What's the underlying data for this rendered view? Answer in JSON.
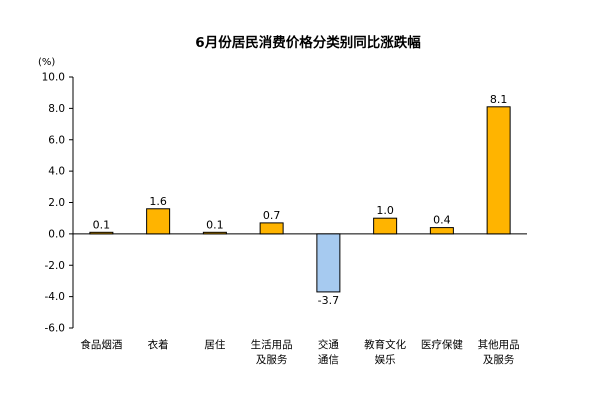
{
  "chart_data": {
    "type": "bar",
    "title": "6月份居民消费价格分类别同比涨跌幅",
    "unit_label": "(%)",
    "ylim": [
      -6.0,
      10.0
    ],
    "yticks": [
      "10.0",
      "8.0",
      "6.0",
      "4.0",
      "2.0",
      "0.0",
      "-2.0",
      "-4.0",
      "-6.0"
    ],
    "ytick_values": [
      10,
      8,
      6,
      4,
      2,
      0,
      -2,
      -4,
      -6
    ],
    "grid": false,
    "legend": "none",
    "categories": [
      [
        "食品烟酒"
      ],
      [
        "衣着"
      ],
      [
        "居住"
      ],
      [
        "生活用品",
        "及服务"
      ],
      [
        "交通",
        "通信"
      ],
      [
        "教育文化",
        "娱乐"
      ],
      [
        "医疗保健"
      ],
      [
        "其他用品",
        "及服务"
      ]
    ],
    "values": [
      0.1,
      1.6,
      0.1,
      0.7,
      -3.7,
      1.0,
      0.4,
      8.1
    ],
    "value_labels": [
      "0.1",
      "1.6",
      "0.1",
      "0.7",
      "-3.7",
      "1.0",
      "0.4",
      "8.1"
    ],
    "colors": {
      "positive_fill": "#FFB400",
      "negative_fill": "#A6CAF0",
      "bar_stroke": "#000000",
      "axis": "#000000"
    }
  }
}
